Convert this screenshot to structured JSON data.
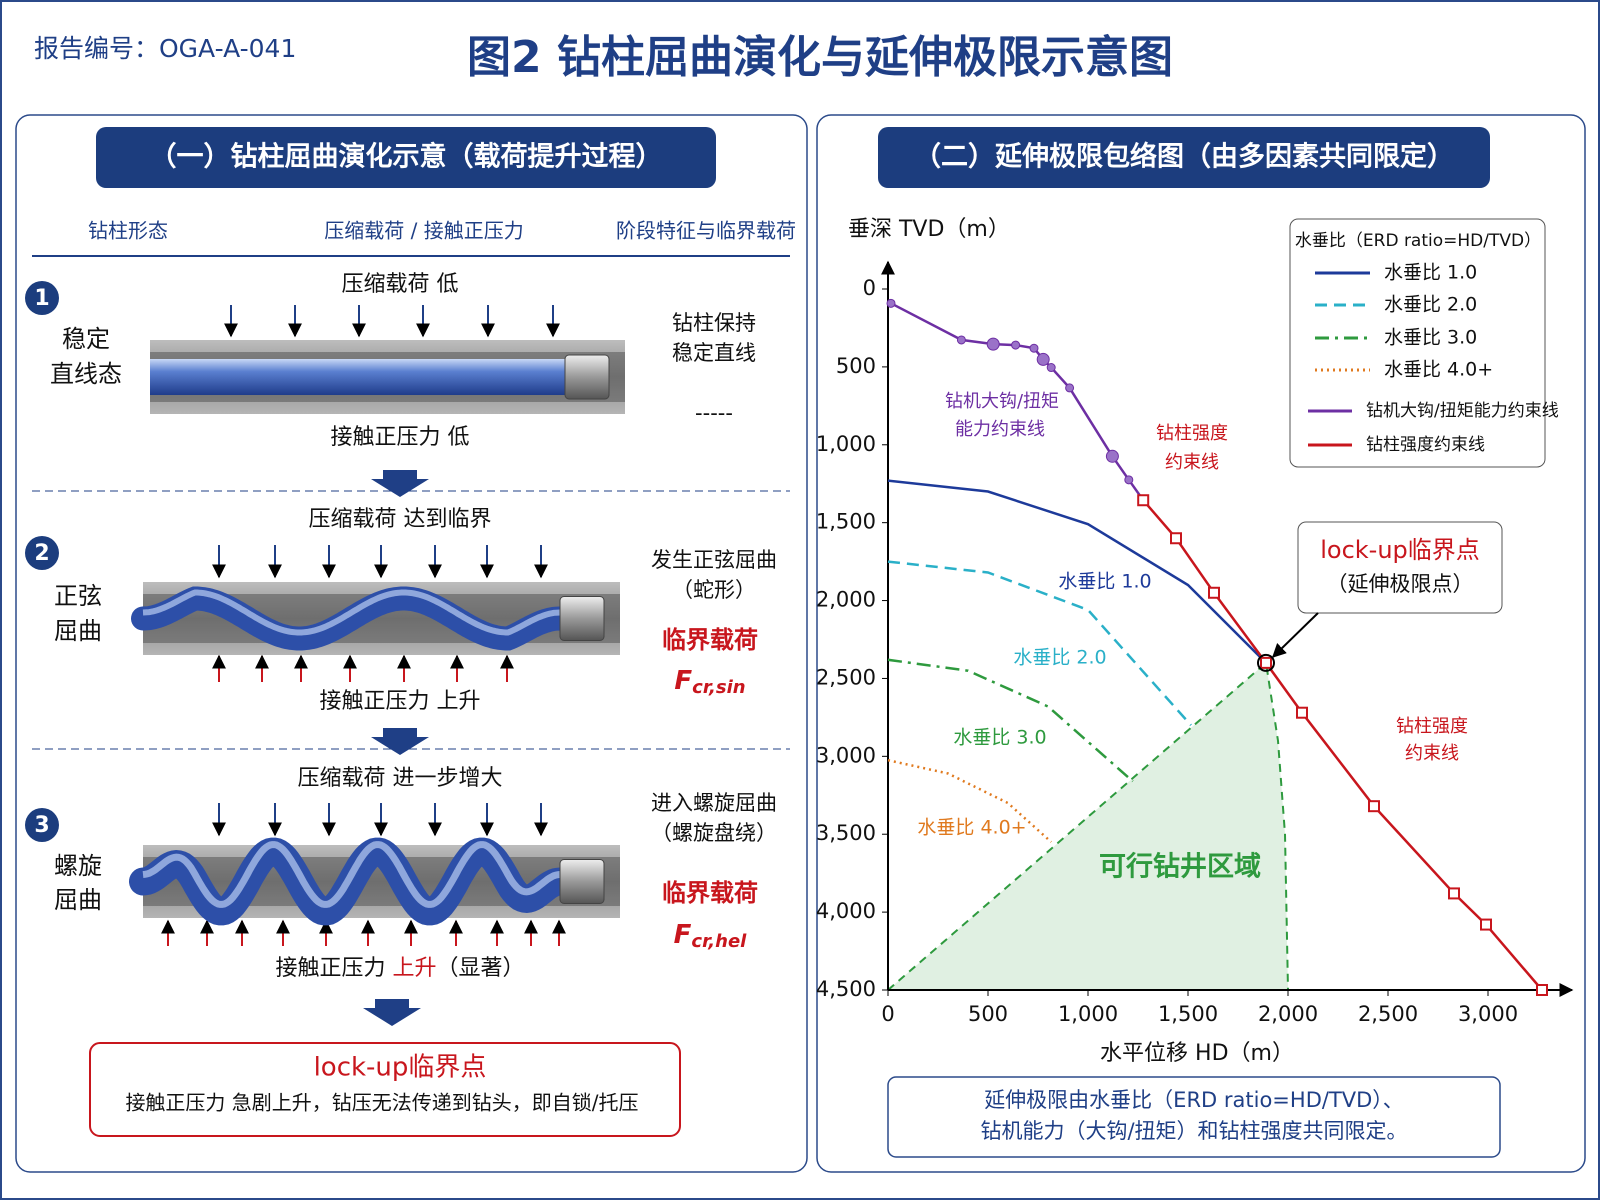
{
  "header": {
    "report_no": "报告编号：OGA-A-041",
    "title": "图2  钻柱屈曲演化与延伸极限示意图"
  },
  "left_panel": {
    "heading": "（一）钻柱屈曲演化示意（载荷提升过程）",
    "columns": [
      "钻柱形态",
      "压缩载荷 / 接触正压力",
      "阶段特征与临界载荷"
    ],
    "stages": [
      {
        "number": "1",
        "name": [
          "稳定",
          "直线态"
        ],
        "load": "压缩载荷 低",
        "contact": [
          "接触正压力 低"
        ],
        "feature": [
          "钻柱保持",
          "稳定直线"
        ],
        "critical": "-----"
      },
      {
        "number": "2",
        "name": [
          "正弦",
          "屈曲"
        ],
        "load": "压缩载荷 达到临界",
        "contact": [
          "接触正压力 上升"
        ],
        "feature": [
          "发生正弦屈曲",
          "（蛇形）"
        ],
        "critical": "临界载荷",
        "symbol": "F",
        "subscript": "cr,sin"
      },
      {
        "number": "3",
        "name": [
          "螺旋",
          "屈曲"
        ],
        "load": "压缩载荷 进一步增大",
        "contact": [
          "接触正压力 ",
          "上升",
          "（显著）"
        ],
        "feature": [
          "进入螺旋屈曲",
          "（螺旋盘绕）"
        ],
        "critical": "临界载荷",
        "symbol": "F",
        "subscript": "cr,hel"
      }
    ],
    "lockup": {
      "title": "lock-up临界点",
      "text": "接触正压力 急剧上升，钻压无法传递到钻头，即自锁/托压"
    }
  },
  "chart_data": {
    "type": "line",
    "title": "（二）延伸极限包络图（由多因素共同限定）",
    "y_label": "垂深 TVD（m）",
    "x_label": "水平位移 HD（m）",
    "y_inverted": true,
    "xlim": [
      0,
      3350
    ],
    "ylim": [
      0,
      4500
    ],
    "xticks": [
      0,
      500,
      {
        "value": 1000,
        "label": "1,000"
      },
      {
        "value": 1500,
        "label": "1,500"
      },
      {
        "value": 2000,
        "label": "2,000"
      },
      {
        "value": 2500,
        "label": "2,500"
      },
      {
        "value": 3000,
        "label": "3,000"
      }
    ],
    "yticks": [
      0,
      500,
      {
        "value": 1000,
        "label": "1,000"
      },
      {
        "value": 1500,
        "label": "1,500"
      },
      {
        "value": 2000,
        "label": "2,000"
      },
      {
        "value": 2500,
        "label": "2,500"
      },
      {
        "value": 3000,
        "label": "3,000"
      },
      {
        "value": 3500,
        "label": "3,500"
      },
      {
        "value": 4000,
        "label": "4,000"
      },
      {
        "value": 4500,
        "label": "4,500"
      }
    ],
    "legend": "upper right",
    "legend_title": "水垂比（ERD ratio=HD/TVD）",
    "series": [
      {
        "name": "水垂比 1.0",
        "color": "#1d3a9a",
        "style": "solid",
        "x": [
          0,
          500,
          1000,
          1500,
          1890
        ],
        "y": [
          1230,
          1300,
          1510,
          1900,
          2400
        ]
      },
      {
        "name": "水垂比 2.0",
        "color": "#2ab0c8",
        "style": "dashed",
        "x": [
          0,
          500,
          1000,
          1515
        ],
        "y": [
          1750,
          1820,
          2060,
          2800
        ]
      },
      {
        "name": "水垂比 3.0",
        "color": "#2e9a3e",
        "style": "dashdot",
        "x": [
          0,
          400,
          800,
          1224
        ],
        "y": [
          2380,
          2450,
          2680,
          3160
        ]
      },
      {
        "name": "水垂比 4.0+",
        "color": "#e07a1f",
        "style": "dotted",
        "x": [
          0,
          300,
          600,
          816
        ],
        "y": [
          3025,
          3110,
          3300,
          3550
        ]
      },
      {
        "name": "钻机大钩/扭矩能力约束线",
        "color": "#6d2fa3",
        "style": "solid",
        "markers": true,
        "x": [
          15,
          367,
          526,
          638,
          730,
          776,
          816,
          908,
          1122,
          1204,
          1276
        ],
        "y": [
          92,
          327,
          354,
          360,
          380,
          452,
          504,
          635,
          1074,
          1225,
          1356
        ]
      },
      {
        "name": "钻柱强度约束线",
        "color": "#c8161d",
        "style": "solid",
        "markers": true,
        "x": [
          1276,
          1440,
          1630,
          1890,
          2070,
          2430,
          2830,
          2990,
          3270
        ],
        "y": [
          1356,
          1600,
          1950,
          2400,
          2720,
          3320,
          3880,
          4080,
          4500
        ]
      }
    ],
    "annotations": [
      {
        "text": [
          "钻机大钩/扭矩",
          "能力约束线"
        ],
        "color": "#6d2fa3"
      },
      {
        "text": [
          "钻柱强度",
          "约束线"
        ],
        "color": "#c8161d"
      },
      {
        "text": [
          "钻柱强度",
          "约束线"
        ],
        "color": "#c8161d"
      }
    ],
    "feasible_region": {
      "label": "可行钻井区域",
      "color": "#2e9a3e",
      "x": [
        0,
        1890,
        1950,
        1985,
        2000
      ],
      "y": [
        4500,
        2400,
        2900,
        3500,
        4500
      ]
    },
    "lockup": {
      "x": 1890,
      "y": 2400,
      "label": [
        "lock-up临界点",
        "（延伸极限点）"
      ]
    }
  },
  "note": [
    "延伸极限由水垂比（ERD ratio=HD/TVD）、",
    "钻机能力（大钩/扭矩）和钻柱强度共同限定。"
  ]
}
